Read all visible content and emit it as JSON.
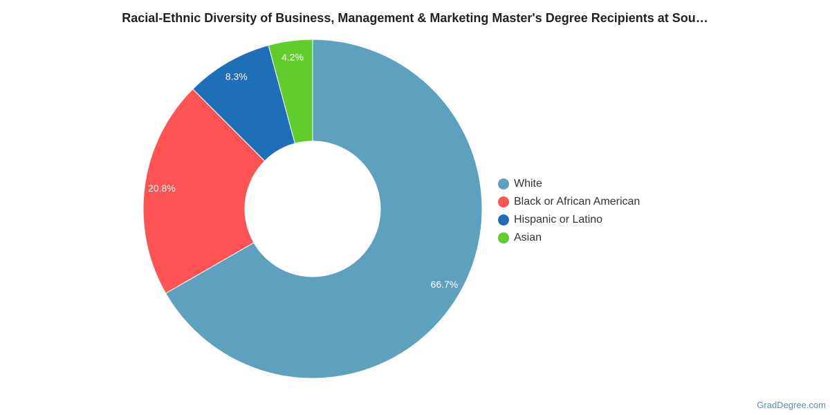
{
  "title": "Racial-Ethnic Diversity of Business, Management & Marketing Master's Degree Recipients at Sou…",
  "watermark": "GradDegree.com",
  "chart_data": {
    "type": "pie",
    "donut": true,
    "legend_position": "right",
    "slices": [
      {
        "name": "White",
        "value": 66.7,
        "label": "66.7%",
        "color": "#5ea1be"
      },
      {
        "name": "Black or African American",
        "value": 20.8,
        "label": "20.8%",
        "color": "#fd5352"
      },
      {
        "name": "Hispanic or Latino",
        "value": 8.3,
        "label": "8.3%",
        "color": "#1f6fb8"
      },
      {
        "name": "Asian",
        "value": 4.2,
        "label": "4.2%",
        "color": "#61cd2d"
      }
    ]
  }
}
